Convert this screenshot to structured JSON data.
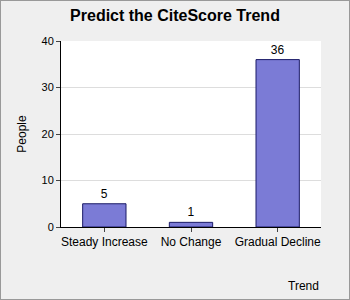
{
  "chart_data": {
    "type": "bar",
    "title": "Predict the CiteScore Trend",
    "x_label": "Trend",
    "y_label": "People",
    "categories": [
      "Steady Increase",
      "No Change",
      "Gradual Decline"
    ],
    "values": [
      5,
      1,
      36
    ],
    "color": "#7b7bd6",
    "ylim": [
      0,
      40
    ],
    "yticks": [
      0,
      10,
      20,
      30,
      40
    ],
    "grid": true,
    "data_labels": true
  }
}
